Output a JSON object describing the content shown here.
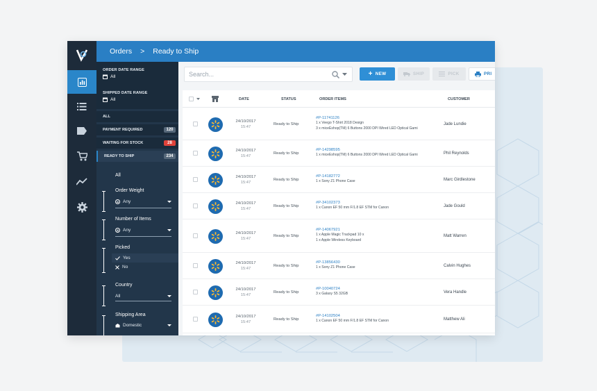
{
  "breadcrumb": {
    "root": "Orders",
    "separator": ">",
    "current": "Ready to Ship"
  },
  "sidebar_filters": {
    "order_date": {
      "label": "ORDER DATE RANGE",
      "value": "All"
    },
    "shipped_date": {
      "label": "SHIPPED DATE RANGE",
      "value": "All"
    },
    "queues": [
      {
        "label": "ALL",
        "count": ""
      },
      {
        "label": "PAYMENT REQUIRED",
        "count": "120"
      },
      {
        "label": "WAITING FOR STOCK",
        "count": "28"
      },
      {
        "label": "READY TO SHIP",
        "count": "234"
      }
    ],
    "all_label": "All",
    "order_weight": {
      "title": "Order Weight",
      "value": "Any"
    },
    "number_of_items": {
      "title": "Number of Items",
      "value": "Any"
    },
    "picked": {
      "title": "Picked",
      "yes": "Yes",
      "no": "No"
    },
    "country": {
      "title": "Country",
      "value": "All"
    },
    "shipping_area": {
      "title": "Shipping Area",
      "value": "Domestic"
    }
  },
  "toolbar": {
    "search_placeholder": "Search...",
    "new_label": "NEW",
    "ship_label": "SHIP",
    "pick_label": "PICK",
    "print_label": "PRI"
  },
  "table": {
    "headers": {
      "date": "DATE",
      "status": "STATUS",
      "items": "ORDER ITEMS",
      "customer": "CUSTOMER"
    },
    "rows": [
      {
        "date": "24/10/2017",
        "time": "15:47",
        "status": "Ready to Ship",
        "order_id": "#P-11741126",
        "items": [
          "1 x Veego T-Shirt 2018 Design",
          "3 x miceEshop(TM) 6 Buttons 2000 DPI Wired LED Optical Gami"
        ],
        "customer": "Jade Lundie"
      },
      {
        "date": "24/10/2017",
        "time": "15:47",
        "status": "Ready to Ship",
        "order_id": "#P-14298595",
        "items": [
          "1 x miceEshop(TM) 6 Buttons 2000 DPI Wired LED Optical Gami"
        ],
        "customer": "Phil Reynolds"
      },
      {
        "date": "24/10/2017",
        "time": "15:47",
        "status": "Ready to Ship",
        "order_id": "#P-14182772",
        "items": [
          "1 x Sony Z1 Phone Case"
        ],
        "customer": "Marc Girdlestone"
      },
      {
        "date": "24/10/2017",
        "time": "15:47",
        "status": "Ready to Ship",
        "order_id": "#P-34102373",
        "items": [
          "1 x Canon EF 50 mm F/1.8 EF STM for Canon"
        ],
        "customer": "Jade Gould"
      },
      {
        "date": "24/10/2017",
        "time": "15:47",
        "status": "Ready to Ship",
        "order_id": "#P-14067921",
        "items": [
          "1 x Apple Magic Trackpad 10 x",
          "1 x Apple Wireless Keyboard"
        ],
        "customer": "Matt Warren"
      },
      {
        "date": "24/10/2017",
        "time": "15:47",
        "status": "Ready to Ship",
        "order_id": "#P-13856430",
        "items": [
          "1 x Sony Z1 Phone Case"
        ],
        "customer": "Calvin Hughes"
      },
      {
        "date": "24/10/2017",
        "time": "15:47",
        "status": "Ready to Ship",
        "order_id": "#P-10040724",
        "items": [
          "3 x Galaxy S5 32GB"
        ],
        "customer": "Vera Handle"
      },
      {
        "date": "24/10/2017",
        "time": "15:47",
        "status": "Ready to Ship",
        "order_id": "#P-14102504",
        "items": [
          "1 x Canon EF 50 mm F/1.8 EF STM for Canon"
        ],
        "customer": "Matthew Ali"
      }
    ]
  },
  "colors": {
    "accent": "#2a7fc4",
    "sidebar": "#22364a",
    "rail": "#1d2b3a",
    "alert": "#e0423a",
    "store_avatar": "#1f6bb0",
    "store_star": "#f7b733"
  }
}
